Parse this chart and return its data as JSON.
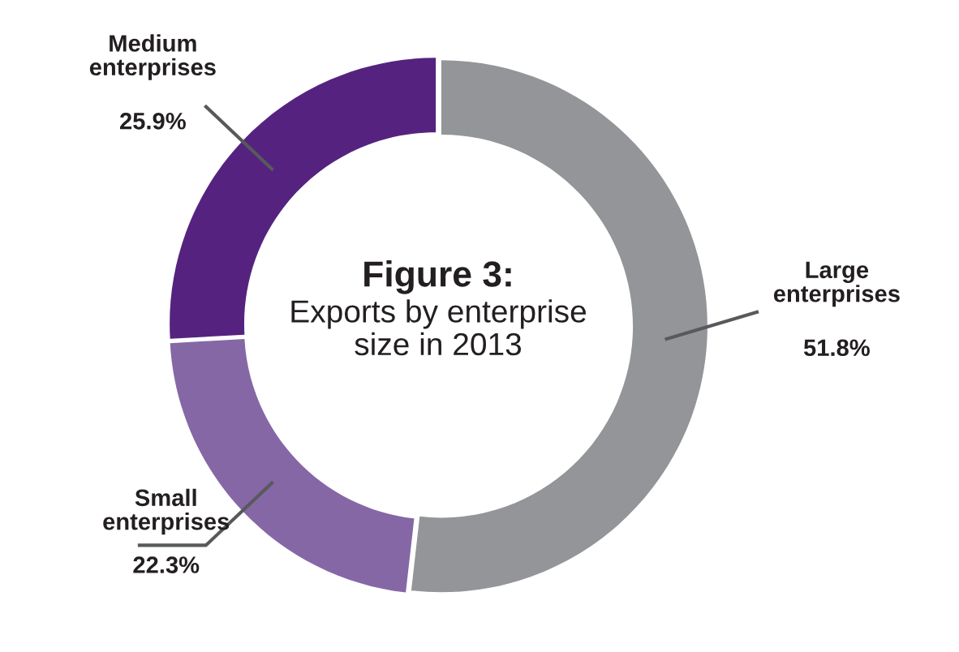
{
  "chart_data": {
    "type": "donut",
    "title": "Figure 3:",
    "subtitle": "Exports by enterprise size in 2013",
    "categories": [
      "Large enterprises",
      "Small enterprises",
      "Medium enterprises"
    ],
    "values": [
      51.8,
      22.3,
      25.9
    ],
    "colors": [
      "#939598",
      "#8567a6",
      "#55237f"
    ],
    "value_labels": [
      "51.8%",
      "22.3%",
      "25.9%"
    ]
  }
}
